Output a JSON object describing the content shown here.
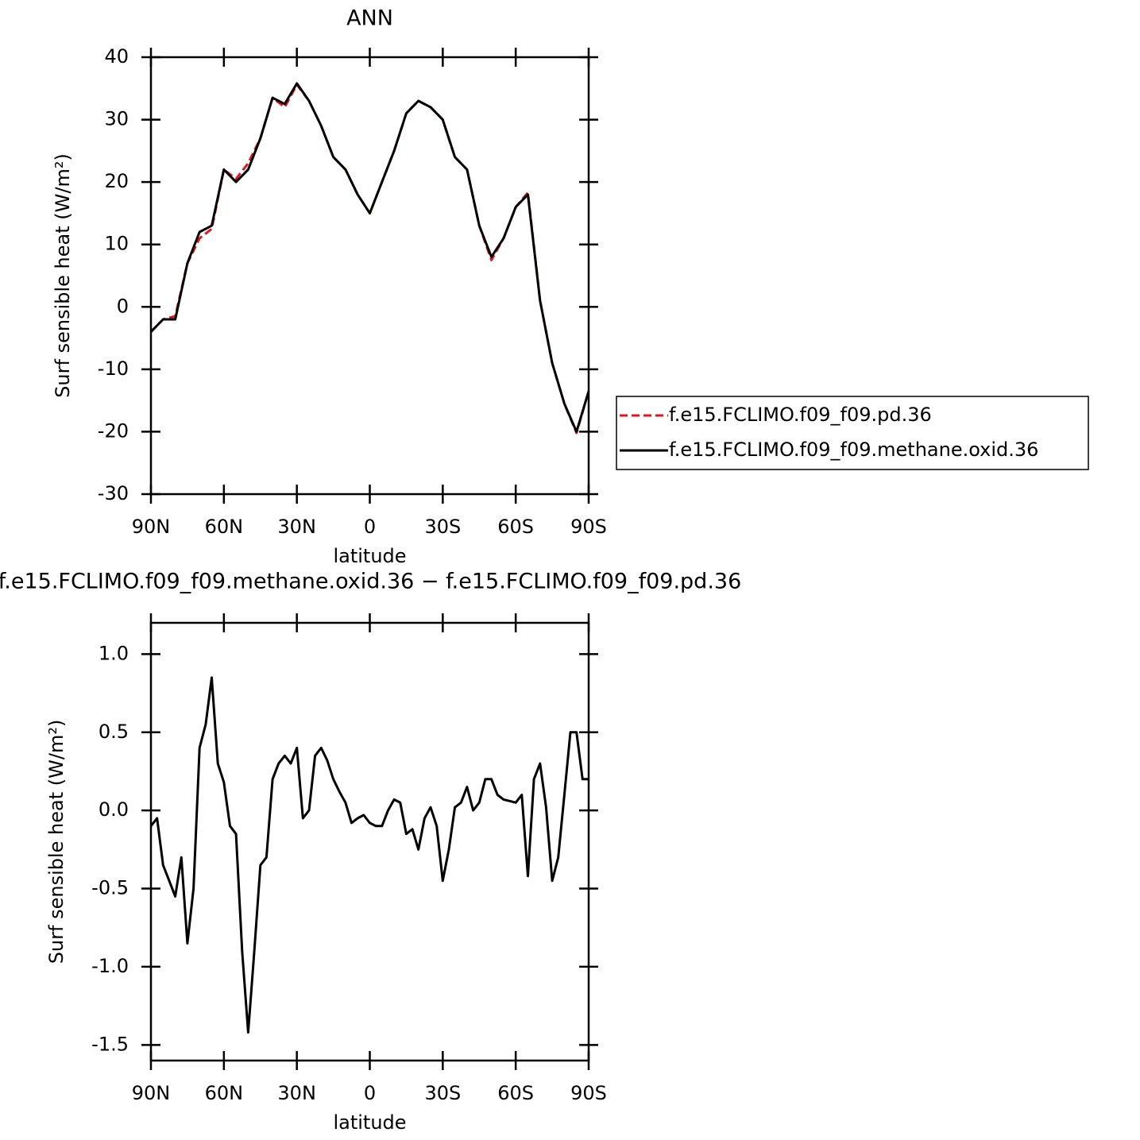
{
  "chart_data": [
    {
      "type": "line",
      "title": "ANN",
      "xlabel": "latitude",
      "ylabel": "Surf sensible heat (W/m²)",
      "x": [
        90,
        85,
        80,
        75,
        70,
        65,
        60,
        55,
        50,
        45,
        40,
        35,
        30,
        25,
        20,
        15,
        10,
        5,
        0,
        -5,
        -10,
        -15,
        -20,
        -25,
        -30,
        -35,
        -40,
        -45,
        -50,
        -55,
        -60,
        -65,
        -70,
        -75,
        -80,
        -85,
        -90
      ],
      "series": [
        {
          "name": "f.e15.FCLIMO.f09_f09.pd.36",
          "color": "#e8141b",
          "linestyle": "dashed",
          "values": [
            -4,
            -2,
            -1.5,
            7,
            11,
            12.5,
            22,
            20.5,
            23,
            27,
            33.5,
            32,
            35.6,
            33,
            29,
            24,
            22,
            18,
            15,
            20,
            25,
            31,
            33,
            32,
            30,
            24,
            22,
            13,
            7.5,
            11,
            16,
            18.3,
            1,
            -9,
            -15.5,
            -20.2,
            -13.5
          ]
        },
        {
          "name": "f.e15.FCLIMO.f09_f09.methane.oxid.36",
          "color": "#000000",
          "linestyle": "solid",
          "values": [
            -4,
            -2,
            -2,
            7,
            12,
            13,
            22,
            20,
            22,
            27,
            33.5,
            32.5,
            35.8,
            33,
            29,
            24,
            22,
            18,
            15,
            20,
            25,
            31,
            33,
            32,
            30,
            24,
            22,
            13,
            8,
            11,
            16,
            18,
            1,
            -9,
            -15.5,
            -20,
            -13.5
          ]
        }
      ],
      "xlim": [
        90,
        -90
      ],
      "xticks": [
        {
          "value": 90,
          "label": "90N"
        },
        {
          "value": 60,
          "label": "60N"
        },
        {
          "value": 30,
          "label": "30N"
        },
        0,
        {
          "value": -30,
          "label": "30S"
        },
        {
          "value": -60,
          "label": "60S"
        },
        {
          "value": -90,
          "label": "90S"
        }
      ],
      "ylim": [
        -30,
        40
      ],
      "yticks": [
        -30,
        -20,
        -10,
        0,
        10,
        20,
        30,
        40
      ],
      "legend": "right"
    },
    {
      "type": "line",
      "title": "f.e15.FCLIMO.f09_f09.methane.oxid.36 − f.e15.FCLIMO.f09_f09.pd.36",
      "xlabel": "latitude",
      "ylabel": "Surf sensible heat (W/m²)",
      "x": [
        90,
        87.5,
        85,
        82.5,
        80,
        77.5,
        75,
        72.5,
        70,
        67.5,
        65,
        62.5,
        60,
        57.5,
        55,
        52.5,
        50,
        47.5,
        45,
        42.5,
        40,
        37.5,
        35,
        32.5,
        30,
        27.5,
        25,
        22.5,
        20,
        17.5,
        15,
        12.5,
        10,
        7.5,
        5,
        2.5,
        0,
        -2.5,
        -5,
        -7.5,
        -10,
        -12.5,
        -15,
        -17.5,
        -20,
        -22.5,
        -25,
        -27.5,
        -30,
        -32.5,
        -35,
        -37.5,
        -40,
        -42.5,
        -45,
        -47.5,
        -50,
        -52.5,
        -55,
        -57.5,
        -60,
        -62.5,
        -65,
        -67.5,
        -70,
        -72.5,
        -75,
        -77.5,
        -80,
        -82.5,
        -85,
        -87.5,
        -90
      ],
      "series": [
        {
          "color": "#000000",
          "linestyle": "solid",
          "values": [
            -0.1,
            -0.05,
            -0.35,
            -0.45,
            -0.55,
            -0.3,
            -0.85,
            -0.5,
            0.4,
            0.55,
            0.85,
            0.3,
            0.18,
            -0.1,
            -0.15,
            -0.9,
            -1.42,
            -0.9,
            -0.35,
            -0.3,
            0.2,
            0.3,
            0.35,
            0.3,
            0.4,
            -0.05,
            0,
            0.35,
            0.4,
            0.32,
            0.2,
            0.12,
            0.05,
            -0.08,
            -0.05,
            -0.03,
            -0.08,
            -0.1,
            -0.1,
            0,
            0.07,
            0.05,
            -0.15,
            -0.12,
            -0.25,
            -0.05,
            0.02,
            -0.1,
            -0.45,
            -0.25,
            0.02,
            0.05,
            0.15,
            0,
            0.05,
            0.2,
            0.2,
            0.1,
            0.07,
            0.06,
            0.05,
            0.1,
            -0.42,
            0.2,
            0.3,
            0.02,
            -0.45,
            -0.3,
            0.1,
            0.5,
            0.5,
            0.2,
            0.2
          ]
        }
      ],
      "xlim": [
        90,
        -90
      ],
      "xticks": [
        {
          "value": 90,
          "label": "90N"
        },
        {
          "value": 60,
          "label": "60N"
        },
        {
          "value": 30,
          "label": "30N"
        },
        0,
        {
          "value": -30,
          "label": "30S"
        },
        {
          "value": -60,
          "label": "60S"
        },
        {
          "value": -90,
          "label": "90S"
        }
      ],
      "ylim": [
        -1.6,
        1.2
      ],
      "yticks": [
        -1.5,
        {
          "value": -1,
          "label": "-1.0"
        },
        -0.5,
        {
          "value": 0,
          "label": "0.0"
        },
        0.5,
        {
          "value": 1,
          "label": "1.0"
        }
      ]
    }
  ]
}
